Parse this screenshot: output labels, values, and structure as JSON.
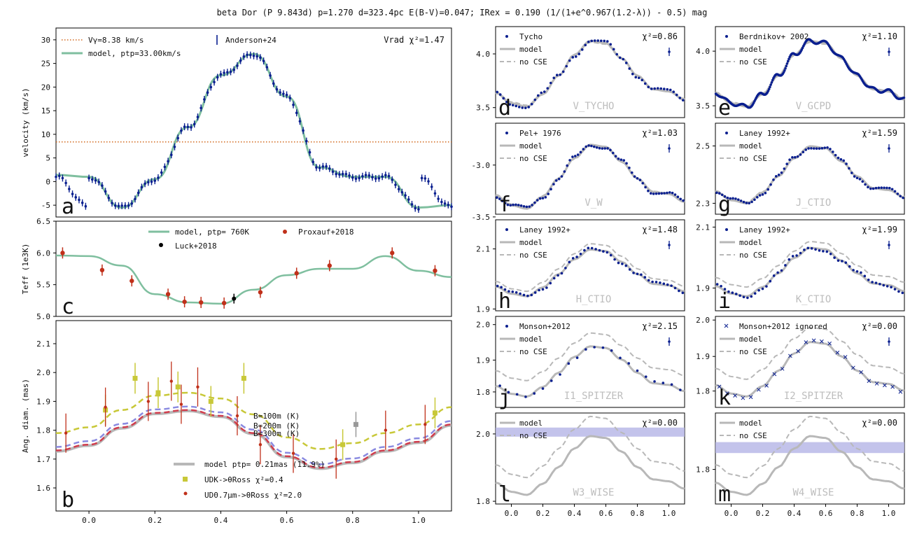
{
  "title": "beta Dor (P  9.843d) p=1.270 d=323.4pc E(B-V)=0.047; IRex = 0.190 (1/(1+e^0.967(1.2-λ)) - 0.5) mag",
  "colors": {
    "navy": "#0a1f8f",
    "model_green": "#7fbf9f",
    "dotted_orange": "#d2691e",
    "teff_red": "#c0301a",
    "gray_model": "#b8b8b8",
    "olive": "#c8c838",
    "blue_dash": "#8a8ae0",
    "red_dash": "#d03c4c",
    "band_fill": "#b4b4e6"
  },
  "chart_data": [
    {
      "id": "a",
      "type": "line",
      "panel_letter": "a",
      "ylabel": "velocity (km/s)",
      "ylim": [
        -7.5,
        32.5
      ],
      "xlim": [
        -0.1,
        1.1
      ],
      "yticks": [
        "-5",
        "0",
        "5",
        "10",
        "15",
        "20",
        "25",
        "30"
      ],
      "legend": [
        "Vγ=8.38 km/s",
        "model, ptp=33.00km/s",
        "Anderson+24"
      ],
      "annotation": "Vrad χ²=1.47",
      "gamma": 8.38,
      "model_x": [
        0.0,
        0.1,
        0.2,
        0.3,
        0.4,
        0.5,
        0.6,
        0.7,
        0.8,
        0.9,
        1.0
      ],
      "model_y": [
        1.0,
        -5.5,
        0.5,
        11.5,
        22.5,
        27.0,
        18.0,
        3.0,
        1.0,
        1.0,
        -5.5
      ]
    },
    {
      "id": "c",
      "type": "scatter",
      "panel_letter": "c",
      "ylabel": "Teff (1e3K)",
      "ylim": [
        5.0,
        6.5
      ],
      "xlim": [
        -0.1,
        1.1
      ],
      "yticks": [
        "5.0",
        "5.5",
        "6.0",
        "6.5"
      ],
      "legend": [
        "model, ptp= 760K",
        "Proxauf+2018",
        "Luck+2018"
      ],
      "model_x": [
        0.0,
        0.1,
        0.2,
        0.3,
        0.4,
        0.5,
        0.6,
        0.7,
        0.8,
        0.9,
        1.0
      ],
      "model_y": [
        5.95,
        5.8,
        5.35,
        5.22,
        5.2,
        5.42,
        5.65,
        5.75,
        5.75,
        5.95,
        5.72
      ],
      "red_points": [
        [
          -0.08,
          6.0
        ],
        [
          0.04,
          5.73
        ],
        [
          0.13,
          5.56
        ],
        [
          0.24,
          5.35
        ],
        [
          0.29,
          5.23
        ],
        [
          0.34,
          5.22
        ],
        [
          0.41,
          5.21
        ],
        [
          0.52,
          5.38
        ],
        [
          0.63,
          5.68
        ],
        [
          0.73,
          5.8
        ],
        [
          0.92,
          6.0
        ],
        [
          1.05,
          5.72
        ]
      ],
      "black_points": [
        [
          0.44,
          5.28
        ]
      ]
    },
    {
      "id": "b",
      "type": "line",
      "panel_letter": "b",
      "ylabel": "Ang. diam. (mas)",
      "ylim": [
        1.52,
        2.18
      ],
      "xlim": [
        -0.1,
        1.1
      ],
      "yticks": [
        "1.6",
        "1.7",
        "1.8",
        "1.9",
        "2.0",
        "2.1"
      ],
      "xticks": [
        "0.0",
        "0.2",
        "0.4",
        "0.6",
        "0.8",
        "1.0"
      ],
      "legend": [
        "model ptp= 0.21mas (11.9%)",
        "UDK->θRoss χ²=0.4",
        "UD0.7μm->θRoss χ²=2.0"
      ],
      "curve_labels": [
        "B=100m (K)",
        "B=200m (K)",
        "B=300m (K)"
      ],
      "olive_points": [
        [
          0.05,
          1.87
        ],
        [
          0.14,
          1.98
        ],
        [
          0.21,
          1.93
        ],
        [
          0.27,
          1.95
        ],
        [
          0.37,
          1.9
        ],
        [
          0.47,
          1.98
        ],
        [
          0.77,
          1.75
        ],
        [
          1.05,
          1.86
        ]
      ],
      "red_points": [
        [
          -0.07,
          1.79
        ],
        [
          0.05,
          1.88
        ],
        [
          0.18,
          1.9
        ],
        [
          0.25,
          1.97
        ],
        [
          0.28,
          1.89
        ],
        [
          0.33,
          1.95
        ],
        [
          0.45,
          1.85
        ],
        [
          0.52,
          1.75
        ],
        [
          0.62,
          1.72
        ],
        [
          0.75,
          1.7
        ],
        [
          0.9,
          1.8
        ],
        [
          1.02,
          1.82
        ]
      ]
    },
    {
      "id": "d",
      "type": "scatter",
      "panel_letter": "d",
      "band": "V_TYCHO",
      "source": "Tycho",
      "chi2": "χ²=0.86",
      "yticks": [
        "3.5",
        "4.0"
      ],
      "has_nocse": true
    },
    {
      "id": "e",
      "type": "scatter",
      "panel_letter": "e",
      "band": "V_GCPD",
      "source": "Berdnikov+ 2002",
      "chi2": "χ²=1.10",
      "yticks": [
        "3.5",
        "4.0"
      ],
      "has_nocse": true
    },
    {
      "id": "f",
      "type": "scatter",
      "panel_letter": "f",
      "band": "V_W",
      "source": "Pel+ 1976",
      "chi2": "χ²=1.03",
      "yticks": [
        "-3.5",
        "-3.0"
      ],
      "has_nocse": true
    },
    {
      "id": "g",
      "type": "scatter",
      "panel_letter": "g",
      "band": "J_CTIO",
      "source": "Laney 1992+",
      "chi2": "χ²=1.59",
      "yticks": [
        "2.3",
        "2.5"
      ],
      "has_nocse": true
    },
    {
      "id": "h",
      "type": "scatter",
      "panel_letter": "h",
      "band": "H_CTIO",
      "source": "Laney 1992+",
      "chi2": "χ²=1.48",
      "yticks": [
        "1.9",
        "2.1"
      ],
      "has_nocse": true
    },
    {
      "id": "i",
      "type": "scatter",
      "panel_letter": "i",
      "band": "K_CTIO",
      "source": "Laney 1992+",
      "chi2": "χ²=1.99",
      "yticks": [
        "1.9",
        "2.1"
      ],
      "has_nocse": true
    },
    {
      "id": "j",
      "type": "scatter",
      "panel_letter": "j",
      "band": "I1_SPITZER",
      "source": "Monson+2012",
      "chi2": "χ²=2.15",
      "yticks": [
        "1.8",
        "1.9",
        "2.0"
      ],
      "has_nocse": true
    },
    {
      "id": "k",
      "type": "scatter",
      "panel_letter": "k",
      "band": "I2_SPITZER",
      "source": "Monson+2012 ignored",
      "chi2": "χ²=0.00",
      "yticks": [
        "1.8",
        "1.9",
        "2.0"
      ],
      "has_nocse": true
    },
    {
      "id": "l",
      "type": "line",
      "panel_letter": "l",
      "band": "W3_WISE",
      "source": "",
      "chi2": "χ²=0.00",
      "yticks": [
        "1.8",
        "2.0"
      ],
      "has_nocse": true,
      "xticks": [
        "0.0",
        "0.2",
        "0.4",
        "0.6",
        "0.8",
        "1.0"
      ]
    },
    {
      "id": "m",
      "type": "line",
      "panel_letter": "m",
      "band": "W4_WISE",
      "source": "",
      "chi2": "χ²=0.00",
      "yticks": [
        "1.8"
      ],
      "has_nocse": true,
      "xticks": [
        "0.0",
        "0.2",
        "0.4",
        "0.6",
        "0.8",
        "1.0"
      ]
    }
  ],
  "legend_labels": {
    "model": "model",
    "nocse": "no CSE"
  }
}
